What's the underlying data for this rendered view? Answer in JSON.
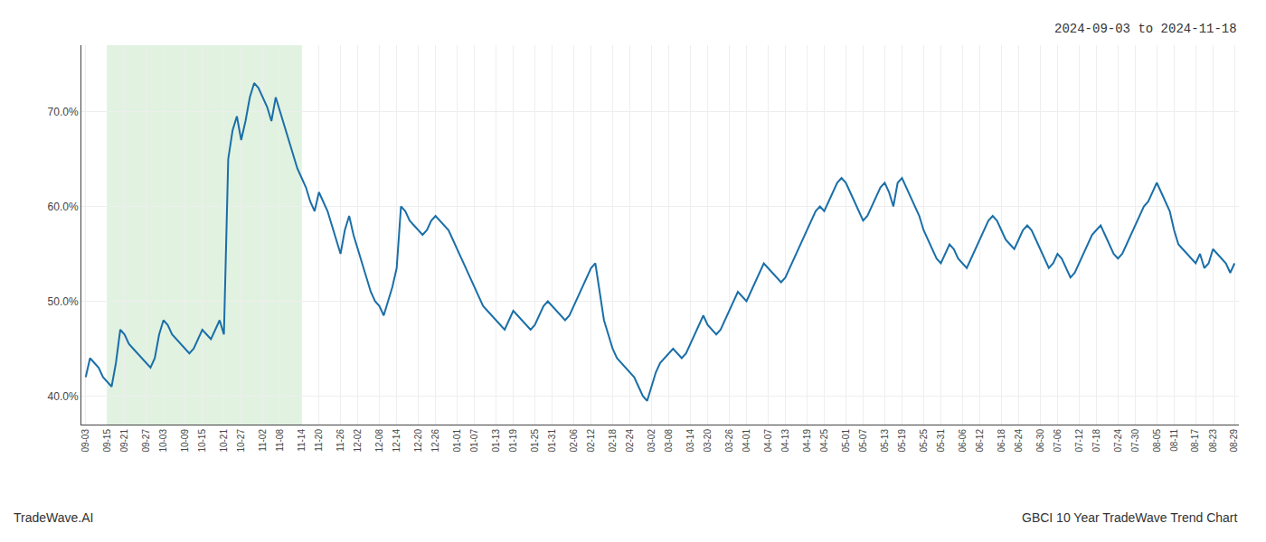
{
  "chart_data": {
    "type": "line",
    "categories": [
      "09-03",
      null,
      null,
      null,
      null,
      "09-15",
      null,
      null,
      null,
      "09-21",
      null,
      null,
      null,
      null,
      "09-27",
      null,
      null,
      null,
      "10-03",
      null,
      null,
      null,
      null,
      "10-09",
      null,
      null,
      null,
      "10-15",
      null,
      null,
      null,
      null,
      "10-21",
      null,
      null,
      null,
      "10-27",
      null,
      null,
      null,
      null,
      "11-02",
      null,
      null,
      null,
      "11-08",
      null,
      null,
      null,
      null,
      "11-14",
      null,
      null,
      null,
      "11-20",
      null,
      null,
      null,
      null,
      "11-26",
      null,
      null,
      null,
      "12-02",
      null,
      null,
      null,
      null,
      "12-08",
      null,
      null,
      null,
      "12-14",
      null,
      null,
      null,
      null,
      "12-20",
      null,
      null,
      null,
      "12-26",
      null,
      null,
      null,
      null,
      "01-01",
      null,
      null,
      null,
      "01-07",
      null,
      null,
      null,
      null,
      "01-13",
      null,
      null,
      null,
      "01-19",
      null,
      null,
      null,
      null,
      "01-25",
      null,
      null,
      null,
      "01-31",
      null,
      null,
      null,
      null,
      "02-06",
      null,
      null,
      null,
      "02-12",
      null,
      null,
      null,
      null,
      "02-18",
      null,
      null,
      null,
      "02-24",
      null,
      null,
      null,
      null,
      "03-02",
      null,
      null,
      null,
      "03-08",
      null,
      null,
      null,
      null,
      "03-14",
      null,
      null,
      null,
      "03-20",
      null,
      null,
      null,
      null,
      "03-26",
      null,
      null,
      null,
      "04-01",
      null,
      null,
      null,
      null,
      "04-07",
      null,
      null,
      null,
      "04-13",
      null,
      null,
      null,
      null,
      "04-19",
      null,
      null,
      null,
      "04-25",
      null,
      null,
      null,
      null,
      "05-01",
      null,
      null,
      null,
      "05-07",
      null,
      null,
      null,
      null,
      "05-13",
      null,
      null,
      null,
      "05-19",
      null,
      null,
      null,
      null,
      "05-25",
      null,
      null,
      null,
      "05-31",
      null,
      null,
      null,
      null,
      "06-06",
      null,
      null,
      null,
      "06-12",
      null,
      null,
      null,
      null,
      "06-18",
      null,
      null,
      null,
      "06-24",
      null,
      null,
      null,
      null,
      "06-30",
      null,
      null,
      null,
      "07-06",
      null,
      null,
      null,
      null,
      "07-12",
      null,
      null,
      null,
      "07-18",
      null,
      null,
      null,
      null,
      "07-24",
      null,
      null,
      null,
      "07-30",
      null,
      null,
      null,
      null,
      "08-05",
      null,
      null,
      null,
      "08-11",
      null,
      null,
      null,
      null,
      "08-17",
      null,
      null,
      null,
      "08-23",
      null,
      null,
      null,
      null,
      "08-29"
    ],
    "values": [
      42.0,
      44.0,
      43.5,
      43.0,
      42.0,
      41.5,
      41.0,
      43.5,
      47.0,
      46.5,
      45.5,
      45.0,
      44.5,
      44.0,
      43.5,
      43.0,
      44.0,
      46.5,
      48.0,
      47.5,
      46.5,
      46.0,
      45.5,
      45.0,
      44.5,
      45.0,
      46.0,
      47.0,
      46.5,
      46.0,
      47.0,
      48.0,
      46.5,
      65.0,
      68.0,
      69.5,
      67.0,
      69.0,
      71.5,
      73.0,
      72.5,
      71.5,
      70.5,
      69.0,
      71.5,
      70.0,
      68.5,
      67.0,
      65.5,
      64.0,
      63.0,
      62.0,
      60.5,
      59.5,
      61.5,
      60.5,
      59.5,
      58.0,
      56.5,
      55.0,
      57.5,
      59.0,
      57.0,
      55.5,
      54.0,
      52.5,
      51.0,
      50.0,
      49.5,
      48.5,
      50.0,
      51.5,
      53.5,
      60.0,
      59.5,
      58.5,
      58.0,
      57.5,
      57.0,
      57.5,
      58.5,
      59.0,
      58.5,
      58.0,
      57.5,
      56.5,
      55.5,
      54.5,
      53.5,
      52.5,
      51.5,
      50.5,
      49.5,
      49.0,
      48.5,
      48.0,
      47.5,
      47.0,
      48.0,
      49.0,
      48.5,
      48.0,
      47.5,
      47.0,
      47.5,
      48.5,
      49.5,
      50.0,
      49.5,
      49.0,
      48.5,
      48.0,
      48.5,
      49.5,
      50.5,
      51.5,
      52.5,
      53.5,
      54.0,
      51.0,
      48.0,
      46.5,
      45.0,
      44.0,
      43.5,
      43.0,
      42.5,
      42.0,
      41.0,
      40.0,
      39.5,
      41.0,
      42.5,
      43.5,
      44.0,
      44.5,
      45.0,
      44.5,
      44.0,
      44.5,
      45.5,
      46.5,
      47.5,
      48.5,
      47.5,
      47.0,
      46.5,
      47.0,
      48.0,
      49.0,
      50.0,
      51.0,
      50.5,
      50.0,
      51.0,
      52.0,
      53.0,
      54.0,
      53.5,
      53.0,
      52.5,
      52.0,
      52.5,
      53.5,
      54.5,
      55.5,
      56.5,
      57.5,
      58.5,
      59.5,
      60.0,
      59.5,
      60.5,
      61.5,
      62.5,
      63.0,
      62.5,
      61.5,
      60.5,
      59.5,
      58.5,
      59.0,
      60.0,
      61.0,
      62.0,
      62.5,
      61.5,
      60.0,
      62.5,
      63.0,
      62.0,
      61.0,
      60.0,
      59.0,
      57.5,
      56.5,
      55.5,
      54.5,
      54.0,
      55.0,
      56.0,
      55.5,
      54.5,
      54.0,
      53.5,
      54.5,
      55.5,
      56.5,
      57.5,
      58.5,
      59.0,
      58.5,
      57.5,
      56.5,
      56.0,
      55.5,
      56.5,
      57.5,
      58.0,
      57.5,
      56.5,
      55.5,
      54.5,
      53.5,
      54.0,
      55.0,
      54.5,
      53.5,
      52.5,
      53.0,
      54.0,
      55.0,
      56.0,
      57.0,
      57.5,
      58.0,
      57.0,
      56.0,
      55.0,
      54.5,
      55.0,
      56.0,
      57.0,
      58.0,
      59.0,
      60.0,
      60.5,
      61.5,
      62.5,
      61.5,
      60.5,
      59.5,
      57.5,
      56.0,
      55.5,
      55.0,
      54.5,
      54.0,
      55.0,
      53.5,
      54.0,
      55.5,
      55.0,
      54.5,
      54.0,
      53.0,
      54.0
    ],
    "color": "#1a6fa8",
    "ylim": [
      37.0,
      77.0
    ],
    "yticks": [
      {
        "value": 40.0,
        "label": "40.0%"
      },
      {
        "value": 50.0,
        "label": "50.0%"
      },
      {
        "value": 60.0,
        "label": "60.0%"
      },
      {
        "value": 70.0,
        "label": "70.0%"
      }
    ],
    "grid": true,
    "shade": {
      "from": "09-15",
      "to": "11-14",
      "color": "#d4ecd4"
    },
    "annotations": [
      "2024-09-03 to 2024-11-18",
      "TradeWave.AI",
      "GBCI 10 Year TradeWave Trend Chart"
    ]
  }
}
